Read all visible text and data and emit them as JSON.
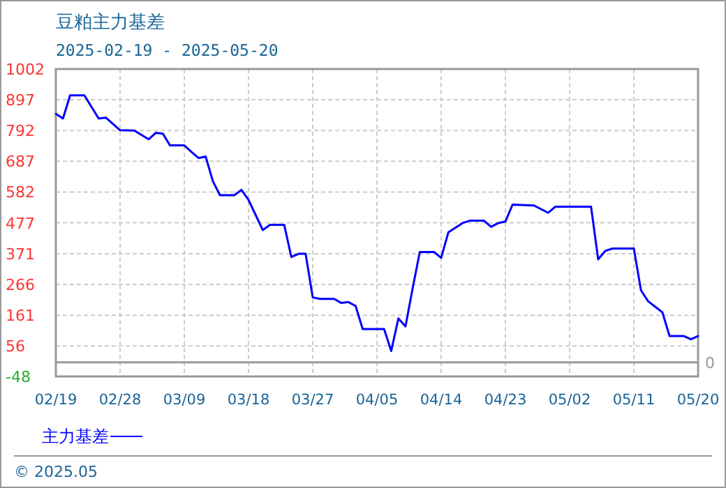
{
  "chart_data": {
    "type": "line",
    "title": "豆粕主力基差",
    "subtitle": "2025-02-19 - 2025-05-20",
    "x": [
      "--02-19",
      "--02-20",
      "--02-21",
      "--02-23",
      "--02-25",
      "--02-26",
      "--02-28",
      "--03-02",
      "--03-04",
      "--03-05",
      "--03-06",
      "--03-07",
      "--03-09",
      "--03-10",
      "--03-11",
      "--03-12",
      "--03-13",
      "--03-14",
      "--03-16",
      "--03-17",
      "--03-18",
      "--03-20",
      "--03-21",
      "--03-23",
      "--03-24",
      "--03-25",
      "--03-26",
      "--03-27",
      "--03-28",
      "--03-30",
      "--03-31",
      "--04-01",
      "--04-02",
      "--04-03",
      "--04-06",
      "--04-07",
      "--04-08",
      "--04-09",
      "--04-10",
      "--04-11",
      "--04-13",
      "--04-14",
      "--04-15",
      "--04-17",
      "--04-18",
      "--04-20",
      "--04-21",
      "--04-22",
      "--04-23",
      "--04-24",
      "--04-27",
      "--04-29",
      "--04-30",
      "--05-05",
      "--05-06",
      "--05-07",
      "--05-08",
      "--05-11",
      "--05-12",
      "--05-13",
      "--05-15",
      "--05-16",
      "--05-18",
      "--05-19",
      "--05-20"
    ],
    "series": [
      {
        "name": "主力基差",
        "color": "#0000ff",
        "values": [
          849,
          833,
          912,
          912,
          833,
          836,
          793,
          792,
          762,
          784,
          781,
          741,
          741,
          719,
          698,
          703,
          619,
          571,
          571,
          589,
          555,
          452,
          470,
          470,
          360,
          371,
          371,
          222,
          217,
          217,
          203,
          206,
          193,
          114,
          114,
          39,
          150,
          123,
          253,
          377,
          377,
          357,
          444,
          476,
          484,
          484,
          463,
          476,
          481,
          539,
          536,
          511,
          532,
          532,
          352,
          381,
          389,
          389,
          246,
          209,
          171,
          90,
          90,
          79,
          90
        ]
      }
    ],
    "xlim": [
      "--02-19",
      "--05-20"
    ],
    "xticks": [
      {
        "value": "--02-19",
        "label": "02/19"
      },
      {
        "value": "--02-28",
        "label": "02/28"
      },
      {
        "value": "--03-09",
        "label": "03/09"
      },
      {
        "value": "--03-18",
        "label": "03/18"
      },
      {
        "value": "--03-27",
        "label": "03/27"
      },
      {
        "value": "--04-05",
        "label": "04/05"
      },
      {
        "value": "--04-14",
        "label": "04/14"
      },
      {
        "value": "--04-23",
        "label": "04/23"
      },
      {
        "value": "--05-02",
        "label": "05/02"
      },
      {
        "value": "--05-11",
        "label": "05/11"
      },
      {
        "value": "--05-20",
        "label": "05/20"
      }
    ],
    "ylim": [
      -48,
      1002
    ],
    "yticks": [
      -48,
      56,
      161,
      266,
      371,
      477,
      582,
      687,
      792,
      897,
      1002
    ],
    "ref_lines": [
      {
        "axis": "y",
        "value": 0,
        "label": "0",
        "color": "#999999"
      }
    ],
    "grid": true,
    "legend": "bottom",
    "marker": "none",
    "line_style": "solid",
    "annotations": [
      "© 2025.05"
    ]
  }
}
